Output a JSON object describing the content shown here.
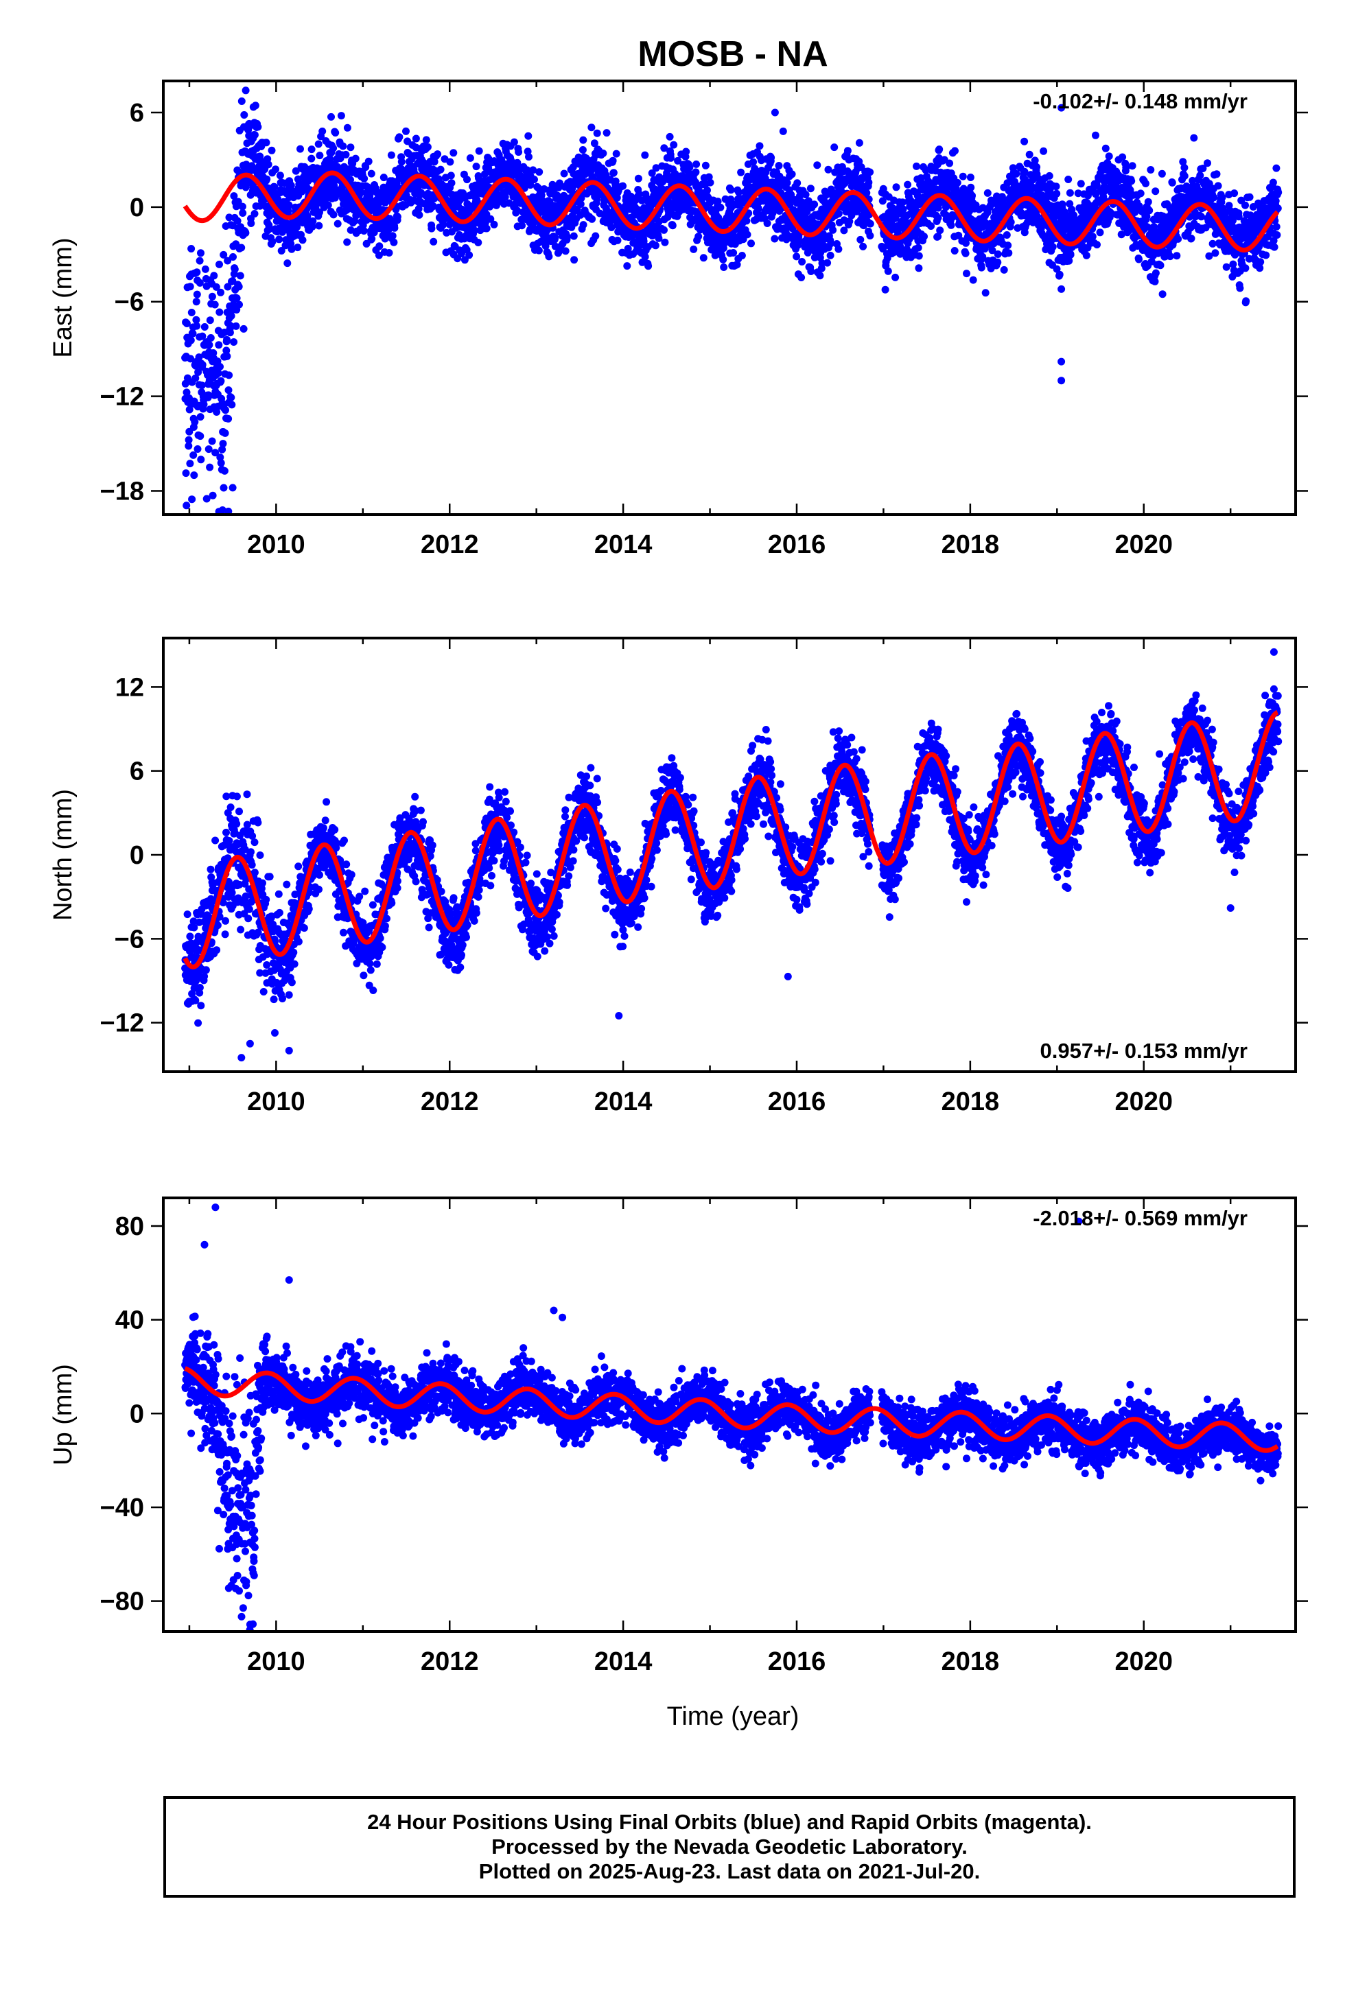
{
  "title": "MOSB - NA",
  "xlabel": "Time (year)",
  "x_ticks": [
    "2010",
    "2012",
    "2014",
    "2016",
    "2018",
    "2020"
  ],
  "footer": {
    "line1": "24 Hour Positions Using Final Orbits (blue) and Rapid Orbits (magenta).",
    "line2": "Processed by the Nevada Geodetic Laboratory.",
    "line3": "Plotted on 2025-Aug-23. Last data on 2021-Jul-20."
  },
  "colors": {
    "final_orbits": "#0000ff",
    "model_fit": "#ff0000",
    "rapid_orbits": "#ff00ff"
  },
  "chart_data": [
    {
      "type": "scatter",
      "ylabel": "East (mm)",
      "rate_label": "-0.102+/- 0.148 mm/yr",
      "rate_position": "top-right",
      "xlim": [
        2008.7,
        2021.75
      ],
      "ylim": [
        -19.5,
        8.0
      ],
      "y_ticks": [
        6,
        0,
        -6,
        -12,
        -18
      ],
      "grid": false,
      "series": [
        {
          "kind": "daily positions",
          "x_range": [
            2008.95,
            2021.55
          ],
          "gaps": [
            [
              2016.85,
              2016.98
            ]
          ],
          "baseline": [
            [
              2008.95,
              -10.0
            ],
            [
              2009.2,
              -8.0
            ],
            [
              2009.4,
              -12.0
            ],
            [
              2009.55,
              -3.0
            ],
            [
              2009.7,
              2.0
            ],
            [
              2010.0,
              0.8
            ],
            [
              2012.0,
              0.8
            ],
            [
              2014.0,
              0.2
            ],
            [
              2016.0,
              -0.2
            ],
            [
              2018.0,
              -0.3
            ],
            [
              2020.0,
              -0.5
            ],
            [
              2021.55,
              -1.0
            ]
          ],
          "scatter_sd": [
            [
              2008.95,
              4.0
            ],
            [
              2009.55,
              3.5
            ],
            [
              2009.8,
              1.3
            ],
            [
              2021.55,
              1.2
            ]
          ],
          "outliers": [
            [
              2009.2,
              -18.5
            ],
            [
              2009.45,
              -19.3
            ],
            [
              2009.5,
              -17.8
            ],
            [
              2009.65,
              7.4
            ],
            [
              2019.05,
              -5.2
            ],
            [
              2019.05,
              -9.8
            ],
            [
              2019.05,
              -11.0
            ],
            [
              2019.05,
              6.3
            ],
            [
              2015.75,
              6.0
            ]
          ]
        },
        {
          "kind": "model fit",
          "x_range": [
            2008.95,
            2021.55
          ],
          "trend": [
            [
              2008.95,
              0.5
            ],
            [
              2010.5,
              0.8
            ],
            [
              2013.0,
              0.3
            ],
            [
              2016.8,
              -0.5
            ],
            [
              2021.55,
              -1.4
            ]
          ],
          "seasonal_amplitude": 1.4,
          "seasonal_phase_year": 2009.65
        }
      ]
    },
    {
      "type": "scatter",
      "ylabel": "North (mm)",
      "rate_label": "0.957+/- 0.153 mm/yr",
      "rate_position": "bottom-right",
      "xlim": [
        2008.7,
        2021.75
      ],
      "ylim": [
        -15.5,
        15.5
      ],
      "y_ticks": [
        12,
        6,
        0,
        -6,
        -12
      ],
      "grid": false,
      "series": [
        {
          "kind": "daily positions",
          "x_range": [
            2008.95,
            2021.55
          ],
          "gaps": [
            [
              2016.85,
              2016.98
            ]
          ],
          "baseline": [
            [
              2008.95,
              -4.0
            ],
            [
              2012.0,
              -2.2
            ],
            [
              2016.0,
              2.0
            ],
            [
              2021.55,
              6.0
            ]
          ],
          "scatter_sd": [
            [
              2008.95,
              1.6
            ],
            [
              2009.8,
              2.3
            ],
            [
              2010.3,
              1.3
            ],
            [
              2021.55,
              1.2
            ]
          ],
          "outliers": [
            [
              2009.6,
              -14.5
            ],
            [
              2009.7,
              -13.5
            ],
            [
              2010.15,
              -14.0
            ],
            [
              2013.95,
              -11.5
            ],
            [
              2015.9,
              -8.7
            ],
            [
              2021.0,
              -3.8
            ],
            [
              2021.5,
              14.5
            ]
          ]
        },
        {
          "kind": "model fit",
          "x_range": [
            2008.95,
            2021.55
          ],
          "trend": [
            [
              2008.95,
              -4.4
            ],
            [
              2012.0,
              -1.7
            ],
            [
              2016.0,
              2.3
            ],
            [
              2021.55,
              6.5
            ]
          ],
          "seasonal_amplitude": 3.7,
          "seasonal_phase_year": 2009.55
        }
      ]
    },
    {
      "type": "scatter",
      "ylabel": "Up (mm)",
      "rate_label": "-2.018+/- 0.569 mm/yr",
      "rate_position": "top-right",
      "xlim": [
        2008.7,
        2021.75
      ],
      "ylim": [
        -93.0,
        92.0
      ],
      "y_ticks": [
        80,
        40,
        0,
        -40,
        -80
      ],
      "grid": false,
      "series": [
        {
          "kind": "daily positions",
          "x_range": [
            2008.95,
            2021.55
          ],
          "gaps": [
            [
              2016.85,
              2016.98
            ]
          ],
          "baseline": [
            [
              2008.95,
              15.0
            ],
            [
              2009.3,
              10.0
            ],
            [
              2009.5,
              -40.0
            ],
            [
              2009.75,
              -40.0
            ],
            [
              2009.85,
              10.0
            ],
            [
              2012.0,
              7.0
            ],
            [
              2016.0,
              -3.0
            ],
            [
              2021.55,
              -12.0
            ]
          ],
          "scatter_sd": [
            [
              2008.95,
              6.0
            ],
            [
              2009.5,
              25.0
            ],
            [
              2009.75,
              25.0
            ],
            [
              2009.9,
              6.0
            ],
            [
              2021.55,
              5.0
            ]
          ],
          "outliers": [
            [
              2009.3,
              88.0
            ],
            [
              2010.15,
              57.0
            ],
            [
              2009.7,
              -90.0
            ],
            [
              2013.2,
              44.0
            ],
            [
              2013.3,
              41.0
            ],
            [
              2012.85,
              28.0
            ],
            [
              2019.25,
              82.0
            ]
          ]
        },
        {
          "kind": "model fit",
          "x_range": [
            2008.95,
            2021.55
          ],
          "trend": [
            [
              2008.95,
              14.0
            ],
            [
              2012.0,
              7.0
            ],
            [
              2016.0,
              -2.0
            ],
            [
              2021.55,
              -10.5
            ]
          ],
          "seasonal_amplitude": 5.5,
          "seasonal_phase_year": 2009.9
        }
      ]
    }
  ]
}
